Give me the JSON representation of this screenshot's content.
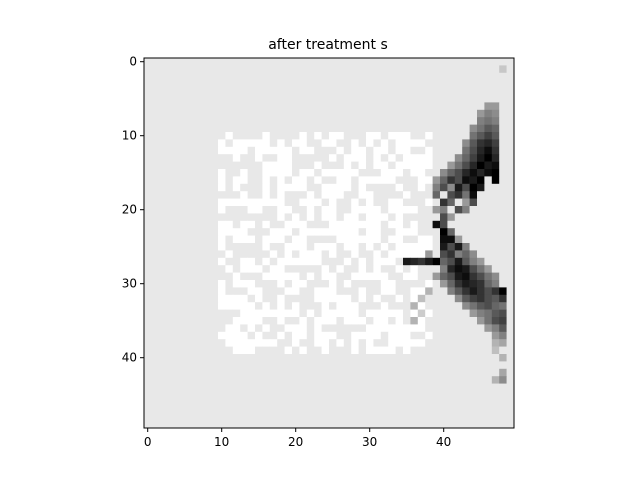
{
  "chart_data": {
    "type": "heatmap",
    "title": "after treatment s",
    "colormap": "gray",
    "grid": false,
    "rows": 50,
    "cols": 50,
    "x_ticks": [
      0,
      10,
      20,
      30,
      40
    ],
    "y_ticks": [
      0,
      10,
      20,
      30,
      40
    ],
    "xlim": [
      -0.5,
      49.5
    ],
    "ylim": [
      49.5,
      -0.5
    ],
    "background_value": 0.91,
    "white_block": {
      "row_start": 10,
      "row_end": 39,
      "col_start": 10,
      "col_end": 38,
      "density": 0.55
    },
    "dark_cells": [
      [
        1,
        48,
        0.78
      ],
      [
        6,
        46,
        0.6
      ],
      [
        6,
        47,
        0.6
      ],
      [
        7,
        45,
        0.6
      ],
      [
        7,
        46,
        0.5
      ],
      [
        7,
        47,
        0.55
      ],
      [
        8,
        45,
        0.5
      ],
      [
        8,
        46,
        0.45
      ],
      [
        8,
        47,
        0.5
      ],
      [
        9,
        44,
        0.55
      ],
      [
        9,
        45,
        0.45
      ],
      [
        9,
        46,
        0.35
      ],
      [
        9,
        47,
        0.4
      ],
      [
        10,
        44,
        0.45
      ],
      [
        10,
        45,
        0.35
      ],
      [
        10,
        46,
        0.25
      ],
      [
        10,
        47,
        0.35
      ],
      [
        11,
        43,
        0.55
      ],
      [
        11,
        44,
        0.35
      ],
      [
        11,
        45,
        0.2
      ],
      [
        11,
        46,
        0.15
      ],
      [
        11,
        47,
        0.25
      ],
      [
        12,
        43,
        0.45
      ],
      [
        12,
        44,
        0.3
      ],
      [
        12,
        45,
        0.15
      ],
      [
        12,
        46,
        0.05
      ],
      [
        12,
        47,
        0.2
      ],
      [
        13,
        42,
        0.55
      ],
      [
        13,
        43,
        0.4
      ],
      [
        13,
        44,
        0.25
      ],
      [
        13,
        45,
        0.1
      ],
      [
        13,
        46,
        0.0
      ],
      [
        13,
        47,
        0.15
      ],
      [
        14,
        41,
        0.6
      ],
      [
        14,
        42,
        0.45
      ],
      [
        14,
        43,
        0.3
      ],
      [
        14,
        44,
        0.15
      ],
      [
        14,
        45,
        0.0
      ],
      [
        14,
        46,
        0.1
      ],
      [
        14,
        47,
        0.05
      ],
      [
        15,
        40,
        0.55
      ],
      [
        15,
        41,
        0.4
      ],
      [
        15,
        42,
        0.3
      ],
      [
        15,
        43,
        0.15
      ],
      [
        15,
        44,
        0.05
      ],
      [
        15,
        45,
        0.15
      ],
      [
        15,
        46,
        0.05
      ],
      [
        15,
        47,
        0.0
      ],
      [
        16,
        39,
        0.6
      ],
      [
        16,
        40,
        0.4
      ],
      [
        16,
        41,
        0.2
      ],
      [
        16,
        42,
        0.3
      ],
      [
        16,
        43,
        0.05
      ],
      [
        16,
        44,
        0.1
      ],
      [
        16,
        45,
        0.0
      ],
      [
        16,
        47,
        0.0
      ],
      [
        17,
        39,
        0.5
      ],
      [
        17,
        40,
        0.3
      ],
      [
        17,
        41,
        0.55
      ],
      [
        17,
        42,
        0.1
      ],
      [
        17,
        43,
        0.3
      ],
      [
        17,
        44,
        0.0
      ],
      [
        17,
        45,
        0.1
      ],
      [
        18,
        39,
        0.4
      ],
      [
        18,
        41,
        0.3
      ],
      [
        18,
        42,
        0.2
      ],
      [
        18,
        43,
        0.45
      ],
      [
        18,
        44,
        0.05
      ],
      [
        19,
        40,
        0.2
      ],
      [
        19,
        41,
        0.4
      ],
      [
        19,
        43,
        0.6
      ],
      [
        19,
        44,
        0.3
      ],
      [
        20,
        39,
        0.6
      ],
      [
        20,
        40,
        0.5
      ],
      [
        20,
        42,
        0.3
      ],
      [
        20,
        43,
        0.5
      ],
      [
        21,
        40,
        0.3
      ],
      [
        21,
        41,
        0.6
      ],
      [
        22,
        39,
        0.05
      ],
      [
        22,
        40,
        0.3
      ],
      [
        23,
        40,
        0.0
      ],
      [
        23,
        41,
        0.4
      ],
      [
        24,
        40,
        0.05
      ],
      [
        24,
        41,
        0.05
      ],
      [
        24,
        42,
        0.6
      ],
      [
        25,
        40,
        0.1
      ],
      [
        25,
        41,
        0.3
      ],
      [
        25,
        42,
        0.1
      ],
      [
        25,
        43,
        0.5
      ],
      [
        26,
        38,
        0.6
      ],
      [
        26,
        40,
        0.3
      ],
      [
        26,
        41,
        0.2
      ],
      [
        26,
        42,
        0.5
      ],
      [
        26,
        43,
        0.4
      ],
      [
        26,
        44,
        0.55
      ],
      [
        27,
        35,
        0.1
      ],
      [
        27,
        36,
        0.15
      ],
      [
        27,
        37,
        0.2
      ],
      [
        27,
        38,
        0.1
      ],
      [
        27,
        39,
        0.0
      ],
      [
        27,
        40,
        0.4
      ],
      [
        27,
        41,
        0.3
      ],
      [
        27,
        42,
        0.1
      ],
      [
        27,
        43,
        0.35
      ],
      [
        27,
        44,
        0.5
      ],
      [
        27,
        45,
        0.6
      ],
      [
        28,
        40,
        0.5
      ],
      [
        28,
        41,
        0.15
      ],
      [
        28,
        42,
        0.05
      ],
      [
        28,
        43,
        0.1
      ],
      [
        28,
        44,
        0.3
      ],
      [
        28,
        45,
        0.45
      ],
      [
        28,
        46,
        0.6
      ],
      [
        29,
        39,
        0.6
      ],
      [
        29,
        40,
        0.4
      ],
      [
        29,
        41,
        0.3
      ],
      [
        29,
        42,
        0.1
      ],
      [
        29,
        43,
        0.05
      ],
      [
        29,
        44,
        0.2
      ],
      [
        29,
        45,
        0.3
      ],
      [
        29,
        46,
        0.45
      ],
      [
        29,
        47,
        0.55
      ],
      [
        30,
        40,
        0.6
      ],
      [
        30,
        41,
        0.4
      ],
      [
        30,
        42,
        0.2
      ],
      [
        30,
        43,
        0.1
      ],
      [
        30,
        44,
        0.15
      ],
      [
        30,
        45,
        0.2
      ],
      [
        30,
        46,
        0.4
      ],
      [
        30,
        47,
        0.5
      ],
      [
        31,
        41,
        0.5
      ],
      [
        31,
        42,
        0.35
      ],
      [
        31,
        43,
        0.2
      ],
      [
        31,
        44,
        0.1
      ],
      [
        31,
        45,
        0.2
      ],
      [
        31,
        46,
        0.3
      ],
      [
        31,
        47,
        0.2
      ],
      [
        31,
        48,
        0.0
      ],
      [
        32,
        42,
        0.55
      ],
      [
        32,
        43,
        0.35
      ],
      [
        32,
        44,
        0.25
      ],
      [
        32,
        45,
        0.2
      ],
      [
        32,
        46,
        0.3
      ],
      [
        32,
        47,
        0.35
      ],
      [
        32,
        48,
        0.2
      ],
      [
        33,
        43,
        0.55
      ],
      [
        33,
        44,
        0.45
      ],
      [
        33,
        45,
        0.35
      ],
      [
        33,
        46,
        0.3
      ],
      [
        33,
        47,
        0.4
      ],
      [
        33,
        48,
        0.45
      ],
      [
        34,
        44,
        0.6
      ],
      [
        34,
        45,
        0.5
      ],
      [
        34,
        46,
        0.45
      ],
      [
        34,
        47,
        0.35
      ],
      [
        34,
        48,
        0.3
      ],
      [
        35,
        45,
        0.6
      ],
      [
        35,
        46,
        0.45
      ],
      [
        35,
        47,
        0.3
      ],
      [
        35,
        48,
        0.25
      ],
      [
        36,
        46,
        0.6
      ],
      [
        36,
        47,
        0.5
      ],
      [
        36,
        48,
        0.35
      ],
      [
        37,
        47,
        0.6
      ],
      [
        37,
        48,
        0.5
      ],
      [
        38,
        47,
        0.7
      ],
      [
        38,
        48,
        0.65
      ],
      [
        39,
        47,
        0.75
      ],
      [
        40,
        48,
        0.7
      ],
      [
        42,
        48,
        0.65
      ],
      [
        43,
        47,
        0.7
      ],
      [
        43,
        48,
        0.55
      ],
      [
        31,
        38,
        0.7
      ],
      [
        32,
        37,
        0.75
      ],
      [
        33,
        36,
        0.7
      ],
      [
        34,
        37,
        0.8
      ],
      [
        35,
        36,
        0.7
      ]
    ]
  }
}
